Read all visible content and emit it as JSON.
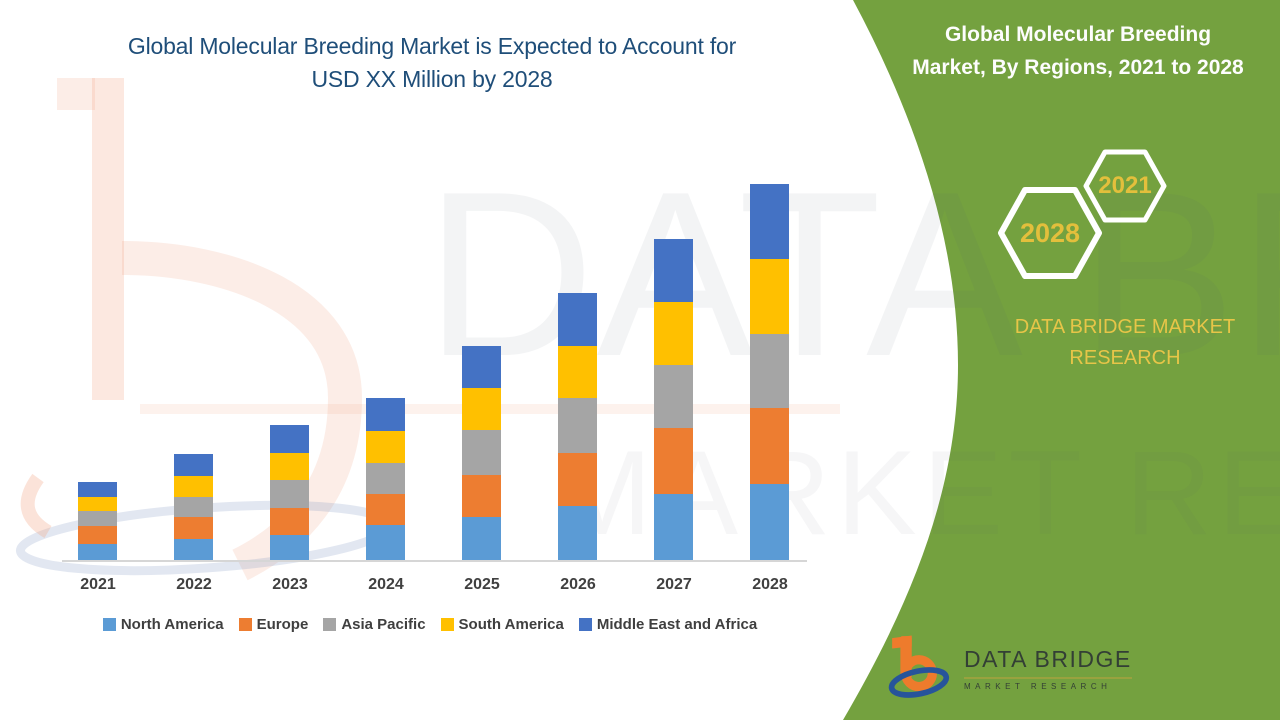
{
  "left_title": {
    "line1": "Global Molecular Breeding Market is Expected to Account for",
    "line2": "USD XX Million by 2028"
  },
  "right_panel": {
    "title_line1": "Global Molecular Breeding",
    "title_line2": "Market, By Regions, 2021 to 2028",
    "hexagons": [
      {
        "label": "2021"
      },
      {
        "label": "2028"
      }
    ],
    "brand_caption_line1": "DATA BRIDGE MARKET",
    "brand_caption_line2": "RESEARCH",
    "logo": {
      "name": "DATA BRIDGE",
      "tagline": "MARKET RESEARCH"
    }
  },
  "watermark": {
    "line1": "DATA BRIDGE",
    "line2": "MARKET RESEARCH"
  },
  "colors": {
    "panel_green": "#74A13F",
    "title_navy": "#1F4E79",
    "hex_gold": "#E3BF3C",
    "caption_gold": "#E7C548",
    "axis_line": "#D6D6D6",
    "label_gray": "#404040",
    "logo_orange": "#EE7B2C",
    "logo_blue": "#27549B"
  },
  "chart_data": {
    "type": "bar",
    "stacked": true,
    "title": "Global Molecular Breeding Market is Expected to Account for USD XX Million by 2028",
    "xlabel": "",
    "ylabel": "",
    "y_axis_visible": false,
    "grid": false,
    "legend_position": "bottom",
    "value_note": "No y-axis shown (placeholder 'USD XX Million'); values are estimated relative units read from bar pixel heights, baseline 0.",
    "categories": [
      "2021",
      "2022",
      "2023",
      "2024",
      "2025",
      "2026",
      "2027",
      "2028"
    ],
    "series": [
      {
        "name": "North America",
        "color": "#5B9BD5",
        "values": [
          16,
          21,
          25,
          35,
          43,
          54,
          66,
          76
        ]
      },
      {
        "name": "Europe",
        "color": "#ED7D31",
        "values": [
          18,
          22,
          27,
          31,
          42,
          53,
          66,
          76
        ]
      },
      {
        "name": "Asia Pacific",
        "color": "#A5A5A5",
        "values": [
          15,
          20,
          28,
          31,
          45,
          55,
          63,
          74
        ]
      },
      {
        "name": "South America",
        "color": "#FFC000",
        "values": [
          14,
          21,
          27,
          32,
          42,
          52,
          63,
          75
        ]
      },
      {
        "name": "Middle East and Africa",
        "color": "#4472C4",
        "values": [
          15,
          22,
          28,
          33,
          42,
          53,
          63,
          75
        ]
      }
    ],
    "totals": [
      78,
      106,
      135,
      162,
      214,
      267,
      321,
      376
    ]
  }
}
